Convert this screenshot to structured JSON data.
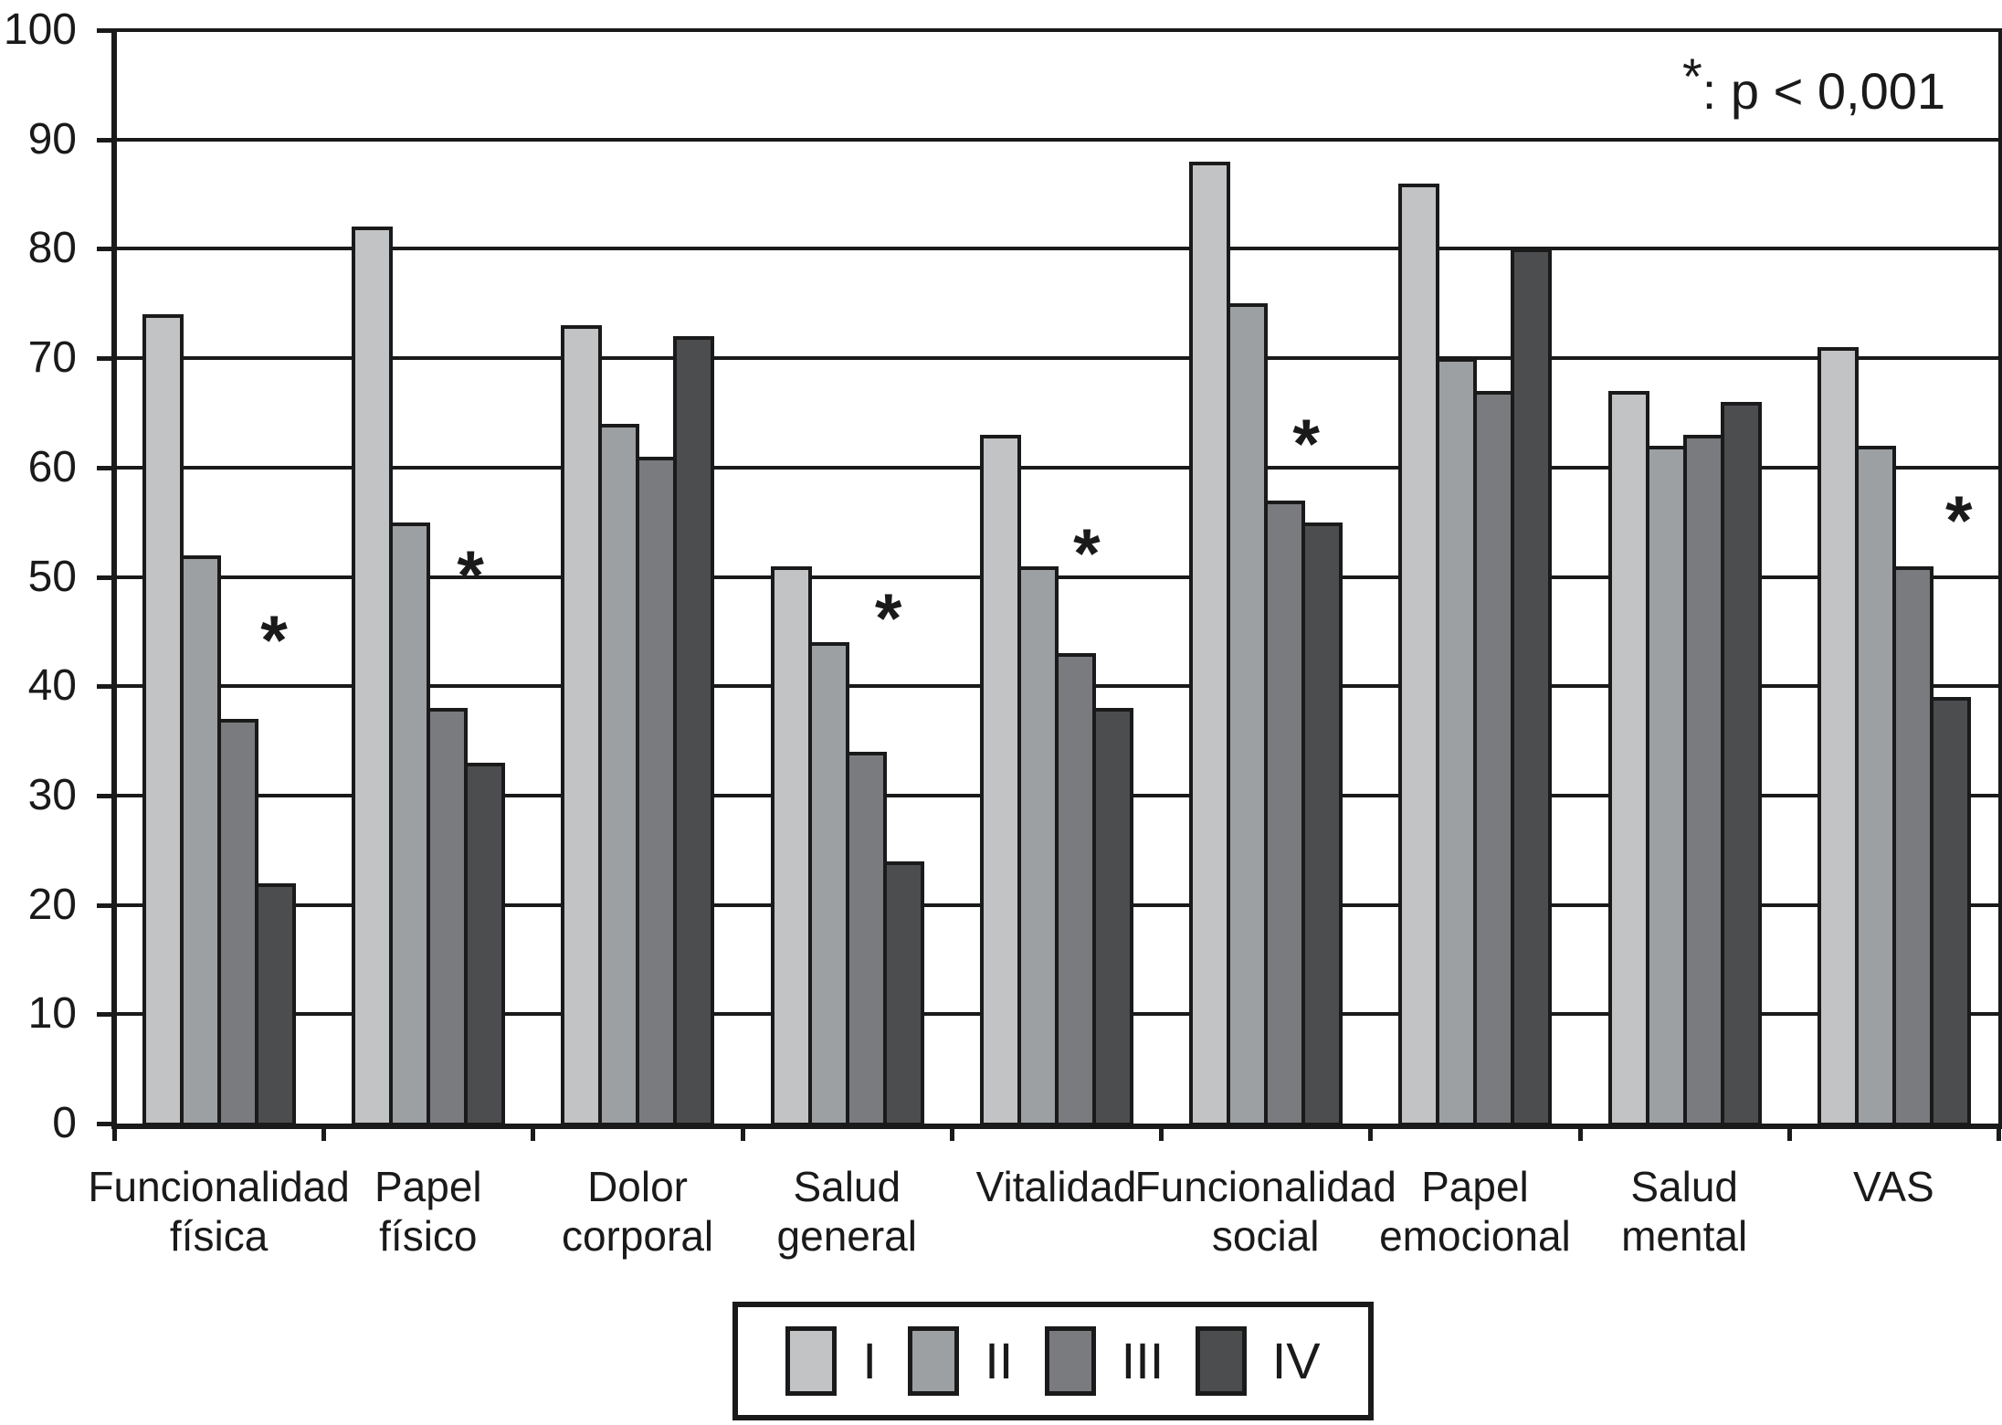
{
  "chart_data": {
    "type": "bar",
    "title": "",
    "xlabel": "",
    "ylabel": "",
    "categories": [
      "Funcionalidad física",
      "Papel físico",
      "Dolor corporal",
      "Salud general",
      "Vitalidad",
      "Funcionalidad social",
      "Papel emocional",
      "Salud mental",
      "VAS"
    ],
    "category_label_lines": [
      [
        "Funcionalidad",
        "física"
      ],
      [
        "Papel",
        "físico"
      ],
      [
        "Dolor",
        "corporal"
      ],
      [
        "Salud",
        "general"
      ],
      [
        "Vitalidad"
      ],
      [
        "Funcionalidad",
        "social"
      ],
      [
        "Papel",
        "emocional"
      ],
      [
        "Salud",
        "mental"
      ],
      [
        "VAS"
      ]
    ],
    "series": [
      {
        "name": "I",
        "color": "#c1c3c5",
        "values": [
          74,
          82,
          73,
          51,
          63,
          88,
          86,
          67,
          71
        ]
      },
      {
        "name": "II",
        "color": "#9da0a2",
        "values": [
          52,
          55,
          64,
          44,
          51,
          75,
          70,
          62,
          62
        ]
      },
      {
        "name": "III",
        "color": "#797b7e",
        "values": [
          37,
          38,
          61,
          34,
          43,
          57,
          67,
          63,
          51
        ]
      },
      {
        "name": "IV",
        "color": "#4b4d4f",
        "values": [
          22,
          33,
          72,
          24,
          38,
          55,
          80,
          66,
          39
        ]
      }
    ],
    "ylim": [
      0,
      100
    ],
    "yticks": [
      0,
      10,
      20,
      30,
      40,
      50,
      60,
      70,
      80,
      90,
      100
    ],
    "grid": "horizontal",
    "axis_color": "#1a1a1a",
    "background_color": "#ffffff",
    "legend": {
      "position": "bottom",
      "entries": [
        "I",
        "II",
        "III",
        "IV"
      ]
    },
    "significance_note_symbol": "*",
    "significance_note_text": ": p < 0,001",
    "significance_markers": [
      {
        "category": "Funcionalidad física",
        "category_index": 0,
        "symbol": "*",
        "y": 45,
        "x_offset": 175
      },
      {
        "category": "Papel físico",
        "category_index": 1,
        "symbol": "*",
        "y": 51,
        "x_offset": 161
      },
      {
        "category": "Salud general",
        "category_index": 3,
        "symbol": "*",
        "y": 47,
        "x_offset": 160
      },
      {
        "category": "Vitalidad",
        "category_index": 4,
        "symbol": "*",
        "y": 53,
        "x_offset": 148
      },
      {
        "category": "Funcionalidad social",
        "category_index": 5,
        "symbol": "*",
        "y": 63,
        "x_offset": 159
      },
      {
        "category": "VAS",
        "category_index": 8,
        "symbol": "*",
        "y": 56,
        "x_offset": 186
      }
    ]
  }
}
